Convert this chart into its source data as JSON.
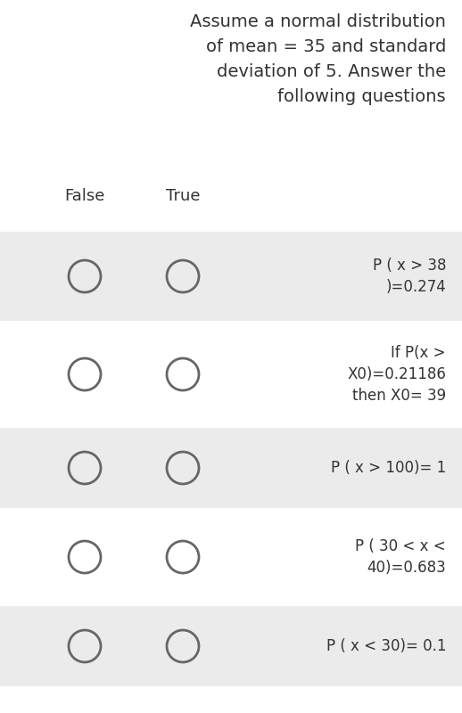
{
  "title_lines": [
    "Assume a normal distribution",
    "of mean = 35 and standard",
    "deviation of 5. Answer the",
    "following questions"
  ],
  "header_false": "False",
  "header_true": "True",
  "rows": [
    {
      "label": "P ( x > 38\n)=0.274"
    },
    {
      "label": "If P(x >\nX0)=0.21186\nthen X0= 39"
    },
    {
      "label": "P ( x > 100)= 1"
    },
    {
      "label": "P ( 30 < x <\n40)=0.683"
    },
    {
      "label": "P ( x < 30)= 0.1"
    }
  ],
  "bg_color": "#ffffff",
  "row_bg_color": "#ebebeb",
  "text_color": "#333333",
  "circle_edge_color": "#666666",
  "font_size_title": 14,
  "font_size_header": 13,
  "font_size_label": 12,
  "fig_width": 5.18,
  "fig_height": 8.0,
  "dpi": 100
}
